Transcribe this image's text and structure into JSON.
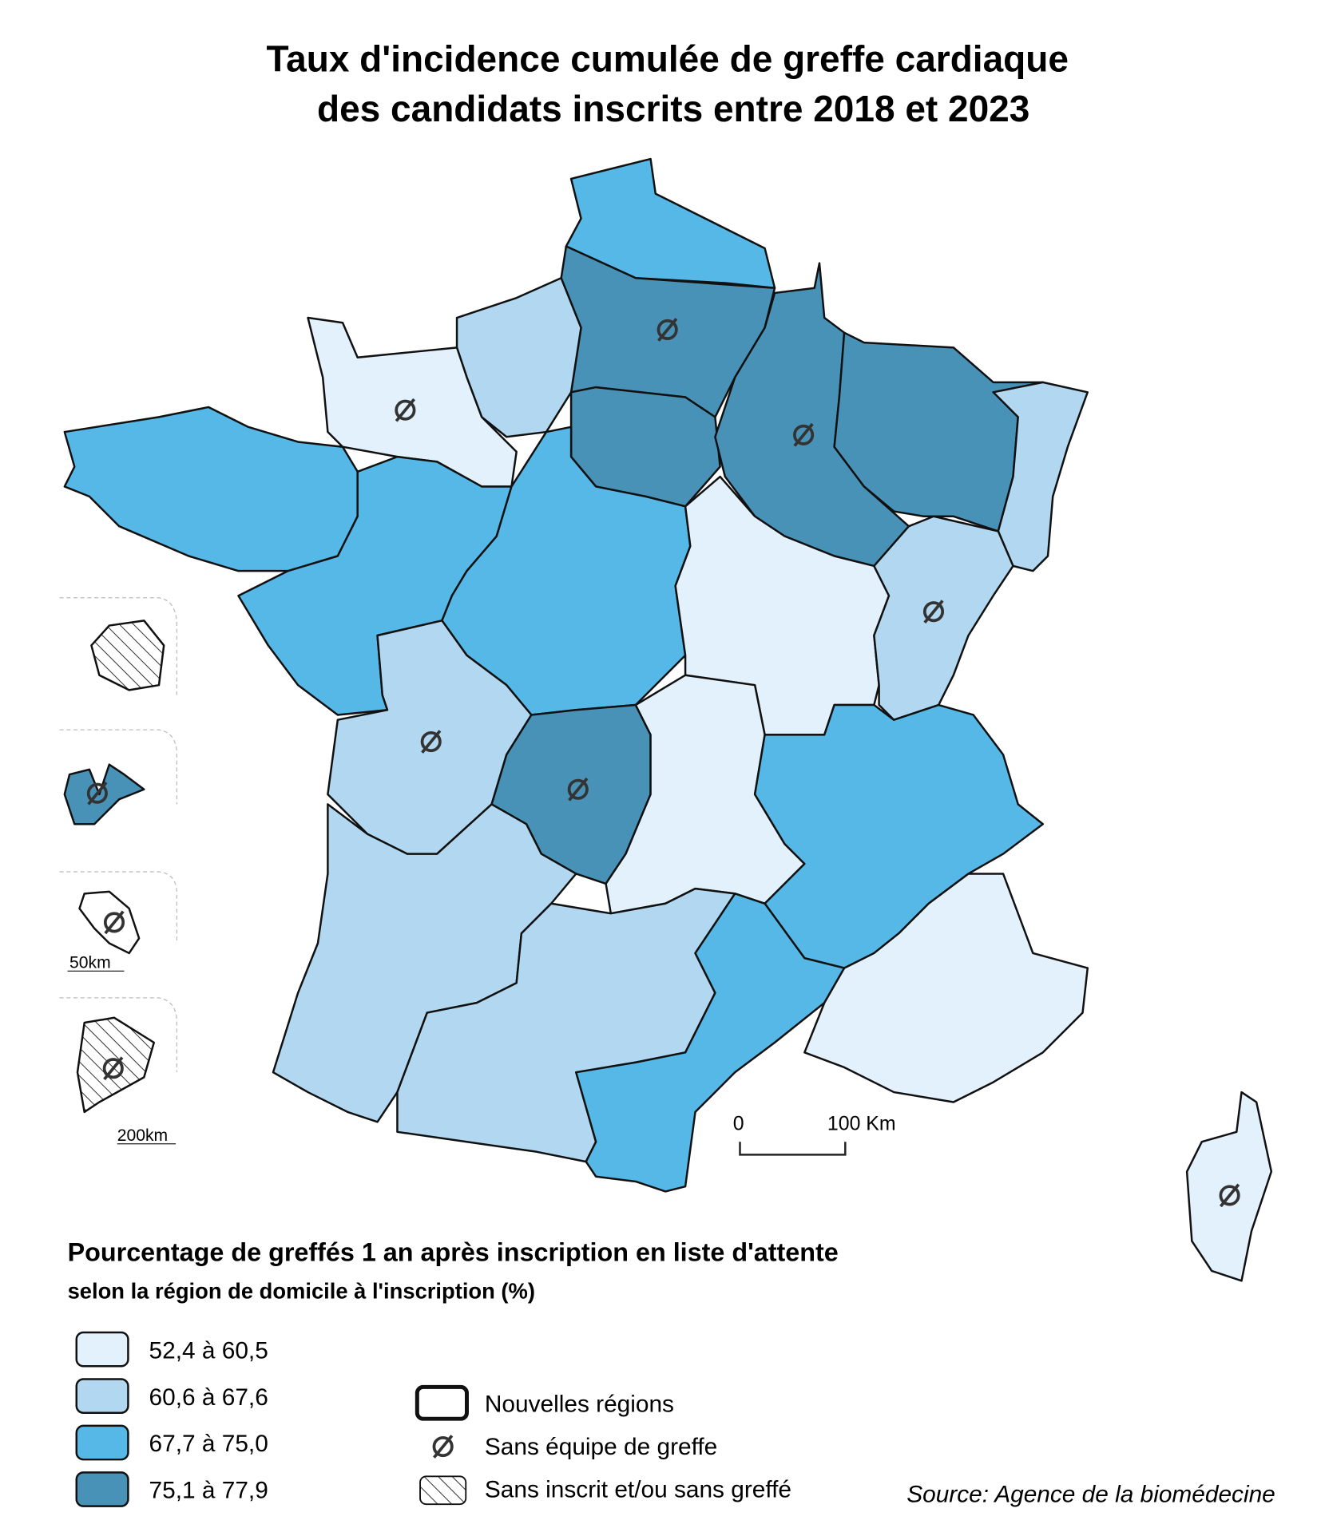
{
  "title": [
    "Taux d'incidence cumulée de greffe cardiaque",
    "des candidats inscrits entre 2018 et 2023"
  ],
  "legend": {
    "title": "Pourcentage de greffés 1 an après inscription en liste d'attente",
    "subtitle": "selon la région de domicile à l'inscription (%)",
    "classes": [
      {
        "label": "52,4 à 60,5",
        "color": "#e3f1fc"
      },
      {
        "label": "60,6 à 67,6",
        "color": "#b1d8f0"
      },
      {
        "label": "67,7 à 75,0",
        "color": "#56b8e6"
      },
      {
        "label": "75,1 à 77,9",
        "color": "#4892b8"
      }
    ]
  },
  "symbols": [
    "Nouvelles régions",
    "Sans équipe de greffe",
    "Sans inscrit et/ou sans greffé"
  ],
  "scale": [
    "0",
    "100 Km"
  ],
  "inset_scales": [
    "50km",
    "200km"
  ],
  "source": "Source: Agence de la biomédecine"
}
